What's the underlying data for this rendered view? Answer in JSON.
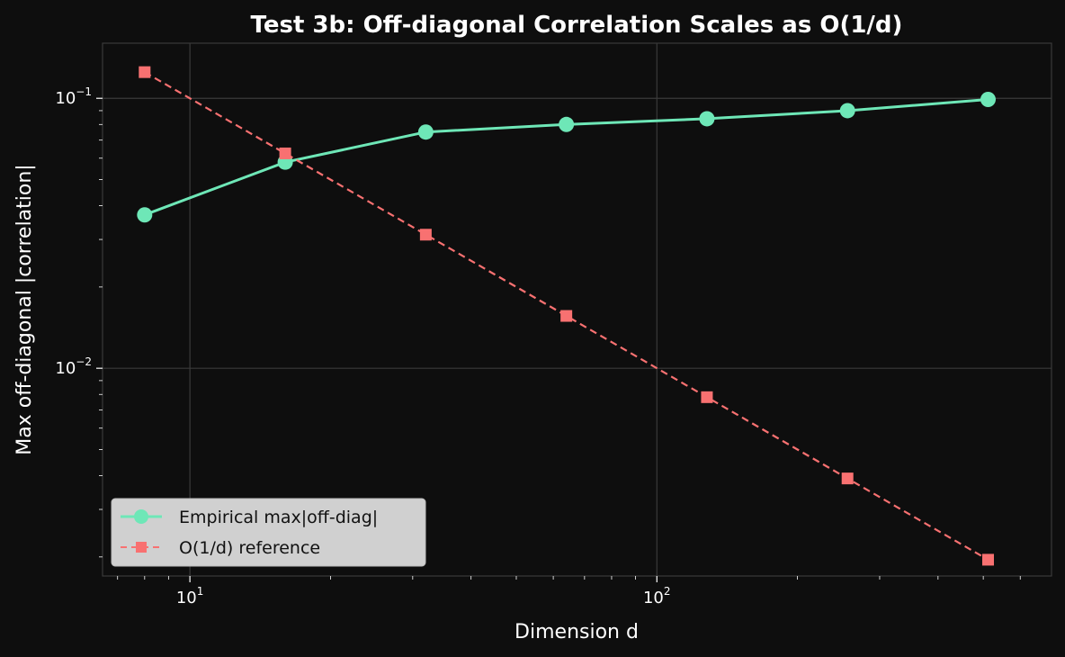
{
  "chart_data": {
    "type": "line",
    "title": "Test 3b: Off-diagonal Correlation Scales as O(1/d)",
    "xlabel": "Dimension d",
    "ylabel": "Max off-diagonal |correlation|",
    "xscale": "log",
    "yscale": "log",
    "xlim": [
      6.5,
      700
    ],
    "ylim": [
      0.0017,
      0.16
    ],
    "x": [
      8,
      16,
      32,
      64,
      128,
      256,
      512
    ],
    "xticks": [
      {
        "value": 10,
        "base": "10",
        "exp": "1"
      },
      {
        "value": 100,
        "base": "10",
        "exp": "2"
      }
    ],
    "yticks": [
      {
        "value": 0.1,
        "base": "10",
        "exp": "−1"
      },
      {
        "value": 0.01,
        "base": "10",
        "exp": "−2"
      }
    ],
    "grid": true,
    "legend_position": "lower-left",
    "series": [
      {
        "name": "Empirical max|off-diag|",
        "values": [
          0.037,
          0.058,
          0.075,
          0.08,
          0.084,
          0.09,
          0.099
        ],
        "color": "#6ee7b7",
        "marker": "circle",
        "linestyle": "solid"
      },
      {
        "name": "O(1/d) reference",
        "values": [
          0.125,
          0.0625,
          0.03125,
          0.015625,
          0.0078125,
          0.00390625,
          0.001953125
        ],
        "color": "#f87171",
        "marker": "square",
        "linestyle": "dashed"
      }
    ],
    "colors": {
      "background": "#0e0e0e",
      "axes_border": "#3a3a3a",
      "grid": "#3a3a3a",
      "text": "#ffffff",
      "legend_bg": "#d0d0d0"
    }
  }
}
